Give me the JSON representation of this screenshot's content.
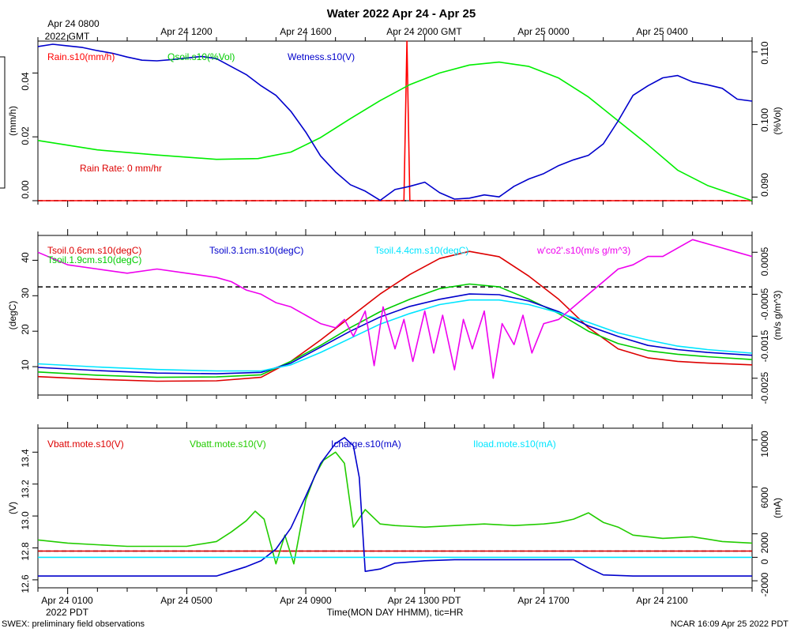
{
  "chart_data": {
    "title": "Water 2022 Apr 24 - Apr 25",
    "top_axis": {
      "ticks": [
        "Apr 24 1200",
        "Apr 24 1600",
        "Apr 24 2000 GMT",
        "Apr 25 0000",
        "Apr 25 0400"
      ],
      "first_line1": "Apr 24 0800",
      "first_line2": "2022 GMT"
    },
    "bottom_axis": {
      "ticks": [
        "Apr 24 0100",
        "Apr 24 0500",
        "Apr 24 0900",
        "Apr 24 1300 PDT",
        "Apr 24 1700",
        "Apr 24 2100"
      ],
      "year_label": "2022 PDT",
      "xlabel": "Time(MON DAY HHMM), tic=HR"
    },
    "footer_left": "SWEX: preliminary field observations",
    "footer_right": "NCAR 16:09 Apr 25 2022 PDT",
    "xrange_hours": [
      0,
      24
    ],
    "panels": [
      {
        "type": "line",
        "ylabel_left": "(mm/h)",
        "ylabel_right": "(%Vol)",
        "left_ticks": [
          "0.00",
          "0.02",
          "0.04"
        ],
        "right_ticks": [
          "0.090",
          "0.100",
          "0.110"
        ],
        "left_range": [
          0,
          0.05
        ],
        "right_range": [
          0.0895,
          0.1115
        ],
        "annotation": "Rain Rate: 0 mm/hr",
        "dashed_ref": 0,
        "legend": [
          "Rain.s10(mm/h)",
          "Qsoil.s10(%Vol)",
          "Wetness.s10(V)"
        ],
        "series": [
          {
            "name": "Rain.s10(mm/h)",
            "color": "#ff0000",
            "axis": "left",
            "x": [
              0,
              12.3,
              12.4,
              12.5,
              12.6,
              24
            ],
            "values": [
              0,
              0,
              0.05,
              0.0,
              0,
              0
            ]
          },
          {
            "name": "Qsoil.s10(%Vol)",
            "color": "#00ee00",
            "axis": "right",
            "x": [
              0,
              2,
              4,
              6,
              7.4,
              8.5,
              9.5,
              10.5,
              11.5,
              12.5,
              13.5,
              14.5,
              15.5,
              16.5,
              17.5,
              18.5,
              19.5,
              20.5,
              21.5,
              22.5,
              24
            ],
            "values": [
              0.0978,
              0.0965,
              0.0958,
              0.0952,
              0.0953,
              0.0962,
              0.0982,
              0.1008,
              0.1033,
              0.1055,
              0.1071,
              0.1082,
              0.1086,
              0.108,
              0.1064,
              0.1038,
              0.1005,
              0.0972,
              0.0937,
              0.0916,
              0.0895
            ]
          },
          {
            "name": "Wetness.s10(V)",
            "color": "#0000cc",
            "axis": "left",
            "x": [
              0,
              0.5,
              1,
              1.5,
              2,
              2.5,
              3,
              3.5,
              4,
              4.5,
              5,
              5.5,
              6,
              6.5,
              7,
              7.5,
              8,
              8.5,
              9,
              9.5,
              10,
              10.5,
              11,
              11.5,
              12,
              12.5,
              13,
              13.5,
              14,
              14.5,
              15,
              15.5,
              16,
              16.5,
              17,
              17.5,
              18,
              18.5,
              19,
              19.5,
              20,
              20.5,
              21,
              21.5,
              22,
              22.5,
              23,
              23.5,
              24
            ],
            "values": [
              0.0483,
              0.049,
              0.0485,
              0.048,
              0.047,
              0.0462,
              0.045,
              0.044,
              0.0438,
              0.0442,
              0.0447,
              0.0452,
              0.0445,
              0.042,
              0.0395,
              0.036,
              0.033,
              0.028,
              0.0215,
              0.014,
              0.009,
              0.005,
              0.003,
              0.0001,
              0.0035,
              0.0045,
              0.0058,
              0.0025,
              0.0005,
              0.0008,
              0.0018,
              0.0012,
              0.0045,
              0.0068,
              0.0085,
              0.011,
              0.0128,
              0.0142,
              0.0178,
              0.025,
              0.033,
              0.036,
              0.0385,
              0.0392,
              0.0372,
              0.0363,
              0.0352,
              0.0318,
              0.0312
            ]
          }
        ]
      },
      {
        "type": "line",
        "ylabel_left": "(degC)",
        "ylabel_right": "(m/s g/m^3)",
        "left_ticks": [
          "10",
          "20",
          "30",
          "40"
        ],
        "right_ticks": [
          "-0.0025",
          "-0.0015",
          "-0.0005",
          "0.0005"
        ],
        "left_range": [
          2,
          47
        ],
        "right_range": [
          -0.0029,
          0.0009
        ],
        "dashed_ref": 32.5,
        "legend": [
          "Tsoil.0.6cm.s10(degC)",
          "Tsoil.1.9cm.s10(degC)",
          "Tsoil.3.1cm.s10(degC)",
          "Tsoil.4.4cm.s10(degC)",
          "w'co2'.s10(m/s g/m^3)"
        ],
        "series": [
          {
            "name": "Tsoil.0.6cm.s10(degC)",
            "color": "#dd0000",
            "axis": "left",
            "x": [
              0,
              2,
              4,
              6,
              7.5,
              8.5,
              9.5,
              10.5,
              11.5,
              12.5,
              13.5,
              14.5,
              15.5,
              16.5,
              17.5,
              18.5,
              19.5,
              20.5,
              21.5,
              22.5,
              24
            ],
            "values": [
              7.2,
              6.4,
              5.9,
              6.0,
              7.0,
              11.5,
              17.5,
              24.0,
              30.5,
              36.0,
              40.5,
              42.5,
              41.0,
              35.5,
              29.0,
              21.0,
              15.0,
              12.5,
              11.5,
              11.0,
              10.5
            ]
          },
          {
            "name": "Tsoil.1.9cm.s10(degC)",
            "color": "#00cc00",
            "axis": "left",
            "x": [
              0,
              2,
              4,
              6,
              7.5,
              8.5,
              9.5,
              10.5,
              11.5,
              12.5,
              13.5,
              14.5,
              15.5,
              16.5,
              17.5,
              18.5,
              19.5,
              20.5,
              21.5,
              22.5,
              24
            ],
            "values": [
              8.5,
              7.6,
              7.0,
              7.1,
              7.7,
              11.5,
              16.0,
              21.0,
              25.5,
              29.0,
              32.0,
              33.3,
              32.5,
              29.0,
              25.0,
              20.0,
              16.5,
              14.5,
              13.5,
              12.8,
              12.0
            ]
          },
          {
            "name": "Tsoil.3.1cm.s10(degC)",
            "color": "#0000cc",
            "axis": "left",
            "x": [
              0,
              2,
              4,
              6,
              7.5,
              8.5,
              9.5,
              10.5,
              11.5,
              12.5,
              13.5,
              14.5,
              15.5,
              16.5,
              17.5,
              18.5,
              19.5,
              20.5,
              21.5,
              22.5,
              24
            ],
            "values": [
              9.8,
              8.9,
              8.2,
              8.0,
              8.4,
              11.0,
              15.5,
              20.0,
              24.0,
              27.0,
              29.0,
              30.5,
              30.3,
              28.5,
              25.5,
              21.5,
              18.5,
              16.0,
              14.8,
              14.0,
              13.2
            ]
          },
          {
            "name": "Tsoil.4.4cm.s10(degC)",
            "color": "#00e5ff",
            "axis": "left",
            "x": [
              0,
              2,
              4,
              6,
              7.5,
              8.5,
              9.5,
              10.5,
              11.5,
              12.5,
              13.5,
              14.5,
              15.5,
              16.5,
              17.5,
              18.5,
              19.5,
              20.5,
              21.5,
              22.5,
              24
            ],
            "values": [
              10.8,
              9.9,
              9.2,
              8.8,
              8.8,
              10.5,
              14.0,
              18.0,
              22.0,
              25.0,
              27.5,
              28.8,
              28.8,
              27.5,
              25.2,
              22.5,
              19.5,
              17.5,
              15.8,
              14.8,
              13.8
            ]
          },
          {
            "name": "w'co2'.s10(m/s g/m^3)",
            "color": "#ee00ee",
            "axis": "right",
            "x": [
              0,
              1,
              2,
              3,
              4,
              5,
              6,
              6.5,
              7,
              7.5,
              8,
              8.5,
              9,
              9.5,
              10,
              10.3,
              10.6,
              11,
              11.3,
              11.6,
              12,
              12.3,
              12.6,
              13,
              13.3,
              13.6,
              14,
              14.3,
              14.6,
              15,
              15.3,
              15.6,
              16,
              16.3,
              16.6,
              17,
              17.5,
              18,
              18.5,
              19,
              19.5,
              20,
              20.5,
              21,
              21.5,
              22,
              22.5,
              23,
              23.5,
              24
            ],
            "values": [
              0.0005,
              0.0002,
              0.0001,
              0.0,
              0.0001,
              0.0,
              -0.0001,
              -0.0002,
              -0.0004,
              -0.0005,
              -0.0007,
              -0.0008,
              -0.001,
              -0.0012,
              -0.0013,
              -0.0011,
              -0.0015,
              -0.0009,
              -0.0022,
              -0.0008,
              -0.0018,
              -0.0011,
              -0.0021,
              -0.0009,
              -0.0019,
              -0.001,
              -0.0023,
              -0.0011,
              -0.0018,
              -0.0009,
              -0.0025,
              -0.0012,
              -0.0017,
              -0.001,
              -0.0019,
              -0.0012,
              -0.0011,
              -0.0008,
              -0.0005,
              -0.0002,
              0.0001,
              0.0002,
              0.0004,
              0.0004,
              0.0006,
              0.0008,
              0.0007,
              0.0006,
              0.0005,
              0.0004
            ]
          }
        ]
      },
      {
        "type": "line",
        "ylabel_left": "(V)",
        "ylabel_right": "(mA)",
        "left_ticks": [
          "12.6",
          "12.8",
          "13.0",
          "13.2",
          "13.4"
        ],
        "right_ticks": [
          "-2000",
          "0",
          "2000",
          "6000",
          "10000"
        ],
        "left_range": [
          12.55,
          13.55
        ],
        "right_range": [
          -2600,
          11000
        ],
        "right_tick_values": [
          -2000,
          0,
          2000,
          6000,
          10000
        ],
        "dashed_ref": 12.78,
        "legend": [
          "Vbatt.mote.s10(V)",
          "Vbatt.mote.s10(V)",
          "Icharge.s10(mA)",
          "Iload.mote.s10(mA)"
        ],
        "series": [
          {
            "name": "Vbatt.mote.s10(V)",
            "color": "#dd0000",
            "axis": "left",
            "x": [
              0,
              24
            ],
            "values": [
              12.78,
              12.78
            ]
          },
          {
            "name": "Vbatt.mote.s10(V)",
            "color": "#22cc00",
            "axis": "left",
            "x": [
              0,
              1,
              2,
              3,
              4,
              5,
              6,
              6.5,
              7,
              7.3,
              7.6,
              8,
              8.3,
              8.6,
              9,
              9.3,
              9.6,
              10,
              10.3,
              10.6,
              11,
              11.5,
              12,
              13,
              14,
              15,
              16,
              17,
              17.5,
              18,
              18.5,
              19,
              19.5,
              20,
              21,
              22,
              23,
              24
            ],
            "values": [
              12.85,
              12.83,
              12.82,
              12.81,
              12.81,
              12.81,
              12.84,
              12.9,
              12.97,
              13.03,
              12.98,
              12.7,
              12.88,
              12.7,
              13.1,
              13.25,
              13.35,
              13.4,
              13.33,
              12.93,
              13.04,
              12.95,
              12.94,
              12.93,
              12.94,
              12.95,
              12.94,
              12.95,
              12.96,
              12.98,
              13.02,
              12.96,
              12.93,
              12.88,
              12.86,
              12.87,
              12.84,
              12.83
            ]
          },
          {
            "name": "Icharge.s10(mA)",
            "color": "#0000cc",
            "axis": "right",
            "x": [
              0,
              2,
              4,
              6,
              6.5,
              7,
              7.5,
              8,
              8.5,
              9,
              9.5,
              10,
              10.3,
              10.6,
              10.8,
              11,
              11.5,
              12,
              13,
              14,
              15,
              16,
              17,
              18,
              18.5,
              19,
              20,
              21,
              22,
              23,
              24
            ],
            "values": [
              -1600,
              -1600,
              -1600,
              -1600,
              -1200,
              -800,
              -300,
              700,
              2500,
              5200,
              8000,
              9700,
              10200,
              9500,
              6800,
              -1200,
              -1000,
              -500,
              -300,
              -200,
              -200,
              -200,
              -200,
              -200,
              -900,
              -1500,
              -1600,
              -1600,
              -1600,
              -1600,
              -1600
            ]
          },
          {
            "name": "Iload.mote.s10(mA)",
            "color": "#00e5ff",
            "axis": "right",
            "x": [
              0,
              24
            ],
            "values": [
              0,
              0
            ]
          }
        ]
      }
    ]
  }
}
